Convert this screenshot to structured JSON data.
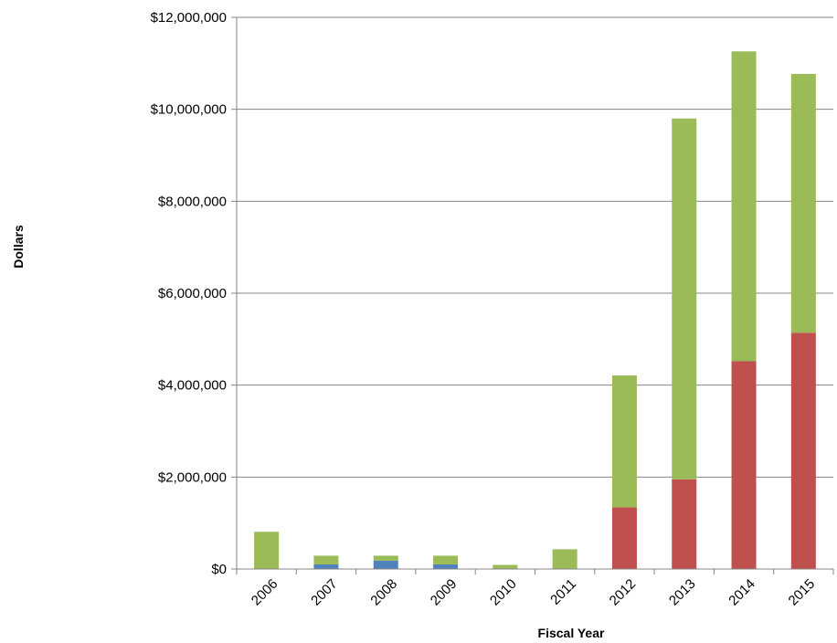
{
  "chart_data": {
    "type": "bar",
    "stacked": true,
    "title": "",
    "xlabel": "Fiscal Year",
    "ylabel": "Dollars",
    "categories": [
      "2006",
      "2007",
      "2008",
      "2009",
      "2010",
      "2011",
      "2012",
      "2013",
      "2014",
      "2015"
    ],
    "ylim": [
      0,
      12000000
    ],
    "yticks": [
      0,
      2000000,
      4000000,
      6000000,
      8000000,
      10000000,
      12000000
    ],
    "ytick_labels": [
      "$0",
      "$2,000,000",
      "$4,000,000",
      "$6,000,000",
      "$8,000,000",
      "$10,000,000",
      "$12,000,000"
    ],
    "grid": true,
    "legend": "none",
    "series": [
      {
        "color": "#4f81bd",
        "values": [
          0,
          100000,
          180000,
          100000,
          0,
          0,
          0,
          0,
          0,
          0
        ]
      },
      {
        "color": "#c0504d",
        "values": [
          0,
          0,
          0,
          0,
          0,
          0,
          1340000,
          1950000,
          4520000,
          5140000
        ]
      },
      {
        "color": "#9bbb59",
        "values": [
          810000,
          190000,
          110000,
          190000,
          90000,
          430000,
          2870000,
          7850000,
          6740000,
          5630000
        ]
      }
    ]
  }
}
